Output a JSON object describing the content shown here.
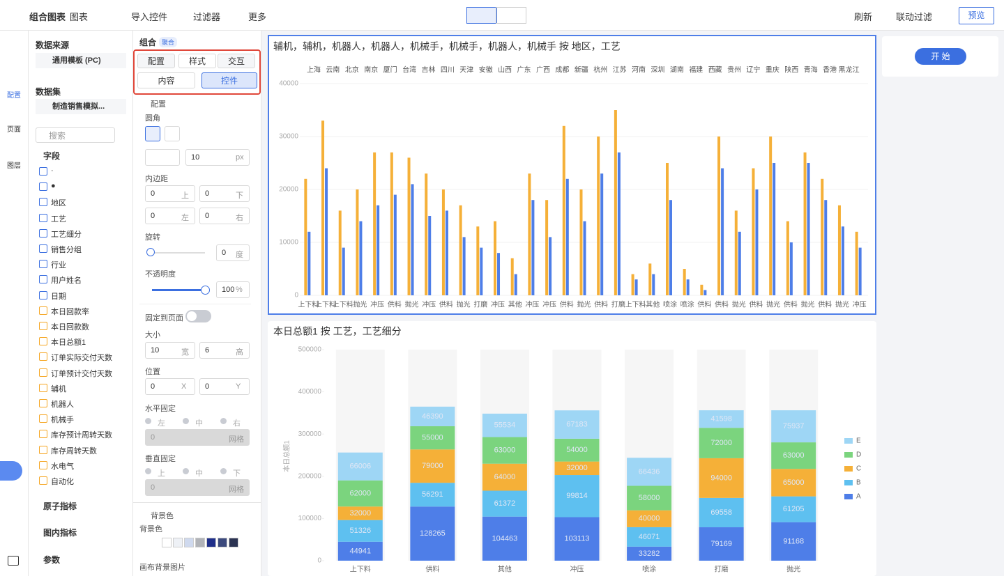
{
  "toolbar": {
    "title": "组合图表",
    "items": [
      "图表",
      "导入控件",
      "过滤器",
      "更多"
    ],
    "right": [
      "刷新",
      "联动过滤"
    ],
    "preview": "预览"
  },
  "rail": [
    "配置",
    "页面",
    "图层"
  ],
  "data_panel": {
    "source_title": "数据来源",
    "source": "通用模板 (PC)",
    "dataset_title": "数据集",
    "dataset": "制造销售模拟...",
    "search": "搜索",
    "fields_title": "字段",
    "fields": [
      "·",
      "●",
      "地区",
      "工艺",
      "工艺细分",
      "销售分组",
      "行业",
      "用户姓名",
      "日期",
      "本日回款率",
      "本日回款数",
      "本日总额1",
      "订单实际交付天数",
      "订单预计交付天数",
      "辅机",
      "机器人",
      "机械手",
      "库存预计周转天数",
      "库存周转天数",
      "水电气",
      "自动化"
    ],
    "sections": [
      "原子指标",
      "图内指标",
      "参数"
    ]
  },
  "settings": {
    "title": "组合",
    "badge": "聚合",
    "tabs": [
      "配置",
      "样式",
      "交互"
    ],
    "subtabs": [
      "内容",
      "控件"
    ],
    "group": "配置",
    "radius": "圆角",
    "radius_value": 10,
    "px": "px",
    "padding": "内边距",
    "padding_fields": [
      [
        0,
        "上"
      ],
      [
        0,
        "下"
      ],
      [
        0,
        "左"
      ],
      [
        0,
        "右"
      ]
    ],
    "rotate": "旋转",
    "rotate_value": 0,
    "rotate_unit": "度",
    "opacity": "不透明度",
    "opacity_value": 100,
    "opacity_unit": "%",
    "fix_page": "固定到页面",
    "size": "大小",
    "size_fields": [
      [
        10,
        "宽"
      ],
      [
        6,
        "高"
      ]
    ],
    "position": "位置",
    "position_fields": [
      [
        0,
        "X"
      ],
      [
        0,
        "Y"
      ]
    ],
    "h_fix": "水平固定",
    "h_options": [
      "左",
      "中",
      "右"
    ],
    "h_grid": [
      0,
      "网格"
    ],
    "v_fix": "垂直固定",
    "v_options": [
      "上",
      "中",
      "下"
    ],
    "v_grid": [
      0,
      "网格"
    ],
    "bg_group": "背景色",
    "bg_label": "背景色",
    "bg_image": "画布背景图片"
  },
  "start_button": "开 始",
  "chart_data": [
    {
      "type": "bar",
      "title": "辅机，辅机，机器人，机器人，机械手，机械手，机器人，机械手 按 地区，工艺",
      "regions": [
        "上海",
        "云南",
        "北京",
        "南京",
        "厦门",
        "台湾",
        "吉林",
        "四川",
        "天津",
        "安徽",
        "山西",
        "广东",
        "广西",
        "成都",
        "新疆",
        "杭州",
        "江苏",
        "河南",
        "深圳",
        "湖南",
        "福建",
        "西藏",
        "贵州",
        "辽宁",
        "重庆",
        "陕西",
        "青海",
        "香港",
        "黑龙江"
      ],
      "categories": [
        "上下料",
        "上下料",
        "上下料",
        "抛光",
        "冲压",
        "供料",
        "抛光",
        "冲压",
        "供料",
        "抛光",
        "打磨",
        "冲压",
        "其他",
        "冲压",
        "冲压",
        "供料",
        "抛光",
        "供料",
        "打磨",
        "上下料",
        "其他",
        "喷涂",
        "喷涂",
        "供料",
        "供料",
        "抛光",
        "供料",
        "抛光",
        "供料",
        "抛光",
        "供料",
        "抛光",
        "冲压"
      ],
      "series": [
        {
          "color": "#f5b038",
          "values": [
            22000,
            33000,
            16000,
            20000,
            27000,
            27000,
            26000,
            23000,
            20000,
            17000,
            13000,
            14000,
            7000,
            23000,
            18000,
            32000,
            20000,
            30000,
            35000,
            4000,
            6000,
            25000,
            5000,
            2000,
            30000,
            16000,
            24000,
            30000,
            14000,
            27000,
            22000,
            17000,
            12000
          ]
        },
        {
          "color": "#4e7ee8",
          "values": [
            12000,
            24000,
            9000,
            14000,
            17000,
            19000,
            21000,
            15000,
            16000,
            11000,
            9000,
            8000,
            4000,
            18000,
            11000,
            22000,
            14000,
            23000,
            27000,
            3000,
            4000,
            18000,
            3000,
            1000,
            24000,
            12000,
            20000,
            25000,
            10000,
            25000,
            18000,
            13000,
            9000
          ]
        }
      ],
      "ylim": [
        0,
        40000
      ],
      "yticks": [
        0,
        10000,
        20000,
        30000,
        40000
      ]
    },
    {
      "type": "stacked_bar",
      "title": "本日总额1 按 工艺，工艺细分",
      "y_label": "本日总额1",
      "categories": [
        "上下料",
        "供料",
        "其他",
        "冲压",
        "喷涂",
        "打磨",
        "抛光"
      ],
      "series": [
        {
          "name": "A",
          "color": "#4e7ee8",
          "values": [
            44941,
            128265,
            104463,
            103113,
            33282,
            79169,
            91168
          ]
        },
        {
          "name": "B",
          "color": "#5ec0f0",
          "values": [
            51326,
            56291,
            61372,
            99814,
            46071,
            69558,
            61205
          ]
        },
        {
          "name": "C",
          "color": "#f5b038",
          "values": [
            32000,
            79000,
            64000,
            32000,
            40000,
            94000,
            65000
          ]
        },
        {
          "name": "D",
          "color": "#7bd47e",
          "values": [
            62000,
            55000,
            63000,
            54000,
            58000,
            72000,
            63000
          ]
        },
        {
          "name": "E",
          "color": "#9ed6f5",
          "values": [
            66006,
            46390,
            55534,
            67183,
            66436,
            41598,
            75937
          ]
        }
      ],
      "ylim": [
        0,
        500000
      ],
      "yticks": [
        0,
        100000,
        200000,
        300000,
        400000,
        500000
      ],
      "legend": "right"
    }
  ]
}
